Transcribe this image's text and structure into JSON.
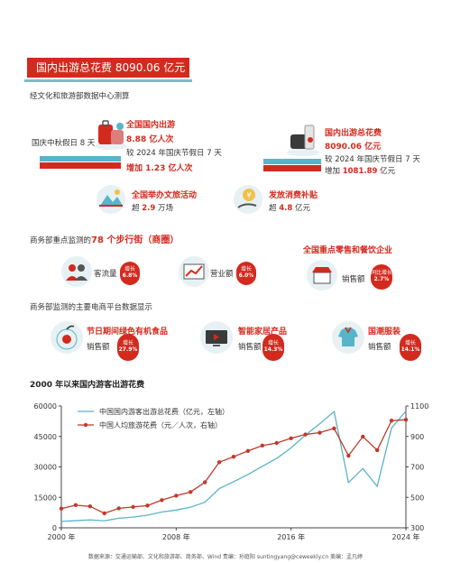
{
  "banner": {
    "title": "国内出游总花费 8090.06 亿元"
  },
  "source_line": "经文化和旅游部数据中心测算",
  "left_stat": {
    "holiday_label": "国庆中秋假日 8 天",
    "title": "全国国内出游",
    "value": "8.88 亿人次",
    "compare": "较 2024 年国庆节假日 7 天",
    "increase": "增加 1.23 亿人次"
  },
  "right_stat": {
    "title": "国内出游总花费",
    "value": "8090.06 亿元",
    "compare": "较 2024 年国庆节假日 7 天",
    "increase_prefix": "增加",
    "increase_value": "1081.89",
    "increase_unit": "亿元"
  },
  "activities": {
    "label": "全国举办文旅活动",
    "value_prefix": "超",
    "value": "2.9",
    "unit": "万场"
  },
  "subsidy": {
    "label": "发放消费补贴",
    "value_prefix": "超",
    "value": "4.8",
    "unit": "亿元"
  },
  "commerce": {
    "prefix": "商务部重点监测的",
    "highlight": "78 个步行街（商圈）",
    "items": [
      {
        "label": "客流量",
        "badge_top": "增长",
        "badge_value": "6.8%"
      },
      {
        "label": "营业额",
        "badge_top": "增长",
        "badge_value": "6.0%"
      }
    ],
    "retail": {
      "title": "全国重点零售和餐饮企业",
      "label": "销售额",
      "badge_top": "同比增长",
      "badge_value": "2.7%"
    }
  },
  "ecommerce": {
    "title": "商务部监测的主要电商平台数据显示",
    "items": [
      {
        "title": "节日期间绿色有机食品",
        "label": "销售额",
        "badge_top": "增长",
        "badge_value": "27.9%"
      },
      {
        "title": "智能家居产品",
        "label": "销售额",
        "badge_top": "增长",
        "badge_value": "14.3%"
      },
      {
        "title": "国潮服装",
        "label": "销售额",
        "badge_top": "增长",
        "badge_value": "14.1%"
      }
    ]
  },
  "chart_title": "2000 年以来国内游客出游花费",
  "footer": "数据来源：交通运输部、文化和旅游部、商务部、Wind    责编：孙庭阳 suntingyang@ceweekly.cn    美编：孟凡婷",
  "chart_data": {
    "type": "line",
    "title": "2000 年以来国内游客出游花费",
    "x": [
      2000,
      2001,
      2002,
      2003,
      2004,
      2005,
      2006,
      2007,
      2008,
      2009,
      2010,
      2011,
      2012,
      2013,
      2014,
      2015,
      2016,
      2017,
      2018,
      2019,
      2020,
      2021,
      2022,
      2023,
      2024
    ],
    "x_tick_labels": [
      "2000 年",
      "2008 年",
      "2016 年",
      "2024 年"
    ],
    "x_ticks": [
      2000,
      2008,
      2016,
      2024
    ],
    "y_left_ticks": [
      0,
      15000,
      30000,
      45000,
      60000
    ],
    "y_right_ticks": [
      300,
      500,
      700,
      900,
      1100
    ],
    "ylim_left": [
      0,
      60000
    ],
    "ylim_right": [
      300,
      1100
    ],
    "grid": false,
    "legend": "top-left",
    "series": [
      {
        "name": "中国国内游客出游总花费（亿元，左轴）",
        "axis": "left",
        "color": "#58b4c8",
        "marker": "none",
        "values": [
          3176,
          3522,
          3878,
          3442,
          4711,
          5286,
          6230,
          7771,
          8749,
          10184,
          12580,
          19305,
          22706,
          26276,
          30312,
          34195,
          39390,
          45661,
          51278,
          57251,
          22286,
          29191,
          20444,
          49133,
          57500
        ]
      },
      {
        "name": "中国人均旅游花费（元／人次，右轴）",
        "axis": "right",
        "color": "#c0392b",
        "marker": "circle",
        "values": [
          426,
          449,
          441,
          395,
          428,
          437,
          446,
          482,
          511,
          535,
          599,
          731,
          767,
          805,
          840,
          857,
          888,
          913,
          925,
          953,
          774,
          899,
          810,
          1004,
          1010
        ]
      }
    ]
  }
}
